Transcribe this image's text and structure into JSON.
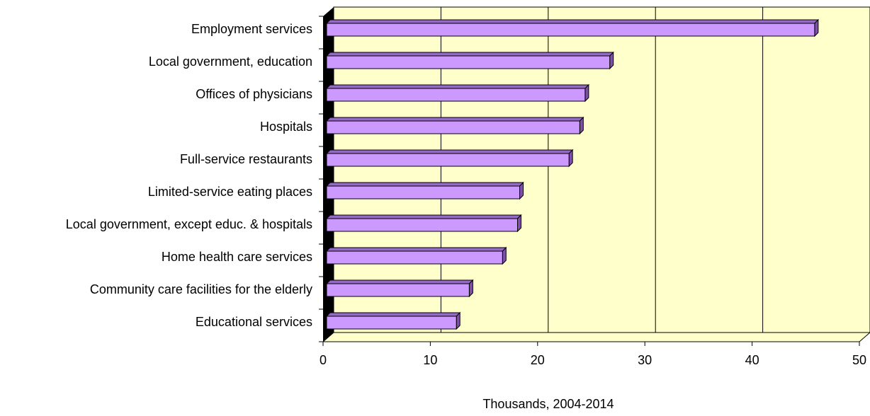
{
  "chart_data": {
    "type": "bar",
    "orientation": "horizontal",
    "xlabel": "Thousands, 2004-2014",
    "categories": [
      "Employment services",
      "Local government, education",
      "Offices of physicians",
      "Hospitals",
      "Full-service restaurants",
      "Limited-service eating places",
      "Local government, except educ. & hospitals",
      "Home health care services",
      "Community care facilities for the elderly",
      "Educational services"
    ],
    "values": [
      45.5,
      26.4,
      24.1,
      23.6,
      22.6,
      18.0,
      17.8,
      16.4,
      13.3,
      12.1
    ],
    "color": "#cc99ff",
    "xlim": [
      0,
      50
    ],
    "xticks": [
      0,
      10,
      20,
      30,
      40,
      50
    ],
    "grid": true
  }
}
